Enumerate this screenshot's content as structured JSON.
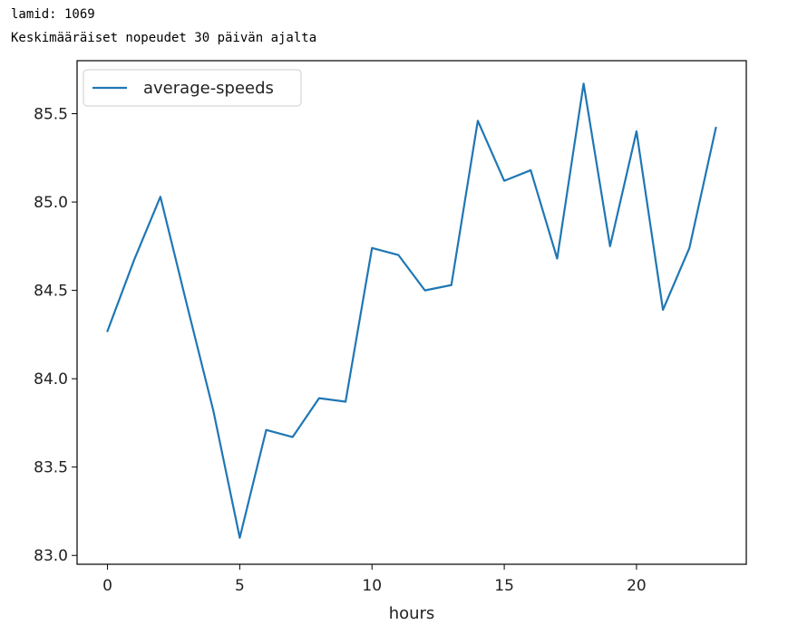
{
  "output": {
    "line1": "lamid: 1069",
    "line2": "Keskimääräiset nopeudet 30 päivän ajalta"
  },
  "colors": {
    "series": "#1f77b4",
    "axes": "#000000",
    "legend_border": "#cccccc"
  },
  "chart_data": {
    "type": "line",
    "title": "",
    "xlabel": "hours",
    "ylabel": "",
    "xlim": [
      -1.15,
      24.15
    ],
    "ylim": [
      82.95,
      85.8
    ],
    "grid": false,
    "legend_position": "upper-left",
    "x_ticks": [
      0,
      5,
      10,
      15,
      20
    ],
    "y_ticks": [
      83.0,
      83.5,
      84.0,
      84.5,
      85.0,
      85.5
    ],
    "x_tick_labels": [
      "0",
      "5",
      "10",
      "15",
      "20"
    ],
    "y_tick_labels": [
      "83.0",
      "83.5",
      "84.0",
      "84.5",
      "85.0",
      "85.5"
    ],
    "series": [
      {
        "name": "average-speeds",
        "x": [
          0,
          1,
          2,
          3,
          4,
          5,
          6,
          7,
          8,
          9,
          10,
          11,
          12,
          13,
          14,
          15,
          16,
          17,
          18,
          19,
          20,
          21,
          22,
          23
        ],
        "values": [
          84.27,
          84.67,
          85.03,
          84.42,
          83.82,
          83.1,
          83.71,
          83.67,
          83.89,
          83.87,
          84.74,
          84.7,
          84.5,
          84.53,
          85.46,
          85.12,
          85.18,
          84.68,
          85.67,
          84.75,
          85.4,
          84.39,
          84.74,
          85.42
        ]
      }
    ]
  }
}
